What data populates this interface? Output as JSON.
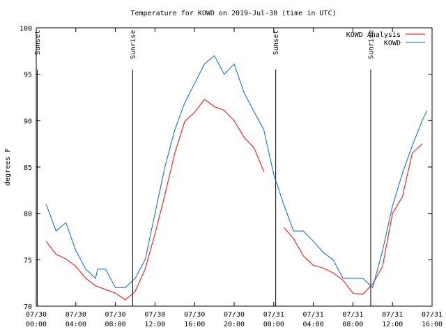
{
  "chart_data": {
    "type": "line",
    "title": "Temperature for KOWD on 2019-Jul-30 (time in UTC)",
    "ylabel": "degrees F",
    "xlabel": "",
    "x_range_hours": [
      0,
      40
    ],
    "ylim": [
      70,
      100
    ],
    "y_ticks": [
      "70",
      "75",
      "80",
      "85",
      "90",
      "95",
      "100"
    ],
    "x_ticks": [
      {
        "hour": 0,
        "line1": "07/30",
        "line2": "00:00"
      },
      {
        "hour": 4,
        "line1": "07/30",
        "line2": "04:00"
      },
      {
        "hour": 8,
        "line1": "07/30",
        "line2": "08:00"
      },
      {
        "hour": 12,
        "line1": "07/30",
        "line2": "12:00"
      },
      {
        "hour": 16,
        "line1": "07/30",
        "line2": "16:00"
      },
      {
        "hour": 20,
        "line1": "07/30",
        "line2": "20:00"
      },
      {
        "hour": 24,
        "line1": "07/31",
        "line2": "00:00"
      },
      {
        "hour": 28,
        "line1": "07/31",
        "line2": "04:00"
      },
      {
        "hour": 32,
        "line1": "07/31",
        "line2": "08:00"
      },
      {
        "hour": 36,
        "line1": "07/31",
        "line2": "12:00"
      },
      {
        "hour": 40,
        "line1": "07/31",
        "line2": "16:00"
      }
    ],
    "events": [
      {
        "hour": 0.1,
        "label": "Sunset"
      },
      {
        "hour": 9.75,
        "label": "Sunrise"
      },
      {
        "hour": 24.2,
        "label": "Sunset"
      },
      {
        "hour": 33.8,
        "label": "Sunrise"
      }
    ],
    "legend_position": "top-right",
    "series": [
      {
        "name": "KOWD Analysis",
        "color": "#ff0000",
        "segments": [
          [
            [
              1,
              77
            ],
            [
              2,
              75.6
            ],
            [
              3,
              75.1
            ],
            [
              4,
              74.3
            ],
            [
              5,
              73
            ],
            [
              6,
              72.2
            ],
            [
              7,
              71.8
            ],
            [
              8,
              71.4
            ],
            [
              9,
              70.7
            ],
            [
              10,
              71.6
            ],
            [
              11,
              74
            ],
            [
              12,
              77.8
            ],
            [
              13,
              82
            ],
            [
              14,
              86.5
            ],
            [
              15,
              89.9
            ],
            [
              16,
              90.9
            ],
            [
              17,
              92.3
            ],
            [
              18,
              91.5
            ],
            [
              19,
              91.1
            ],
            [
              20,
              90
            ],
            [
              21,
              88.2
            ],
            [
              22,
              87.1
            ],
            [
              23,
              84.5
            ]
          ],
          [
            [
              25,
              78.5
            ],
            [
              26,
              77.3
            ],
            [
              27,
              75.4
            ],
            [
              28,
              74.4
            ],
            [
              29,
              74.1
            ],
            [
              30,
              73.6
            ],
            [
              31,
              72.8
            ],
            [
              32,
              71.4
            ],
            [
              33,
              71.3
            ],
            [
              34,
              72.4
            ],
            [
              35,
              74.3
            ],
            [
              36,
              80
            ],
            [
              37,
              81.8
            ],
            [
              38,
              86.5
            ],
            [
              39,
              87.5
            ]
          ]
        ]
      },
      {
        "name": "KOWD",
        "color": "#0066cc",
        "segments": [
          [
            [
              1,
              81
            ],
            [
              2,
              78.1
            ],
            [
              3,
              79
            ],
            [
              4,
              76
            ],
            [
              5,
              74
            ],
            [
              6,
              73
            ],
            [
              6.2,
              74
            ],
            [
              7,
              74
            ],
            [
              8,
              72
            ],
            [
              9,
              72
            ],
            [
              10,
              73
            ],
            [
              11,
              75
            ],
            [
              12,
              80
            ],
            [
              13,
              85
            ],
            [
              14,
              89
            ],
            [
              15,
              91.9
            ],
            [
              16,
              94
            ],
            [
              17,
              96.1
            ],
            [
              18,
              97
            ],
            [
              19,
              95
            ],
            [
              20,
              96.1
            ],
            [
              21,
              93
            ],
            [
              22,
              91
            ],
            [
              23,
              89
            ],
            [
              24,
              84.2
            ],
            [
              25,
              81
            ],
            [
              26,
              78.1
            ],
            [
              27,
              78.1
            ],
            [
              28,
              77
            ],
            [
              29,
              75.8
            ],
            [
              30,
              75
            ],
            [
              31,
              73
            ],
            [
              32,
              73
            ],
            [
              33,
              73
            ],
            [
              34,
              72
            ],
            [
              35,
              76
            ],
            [
              36,
              80.8
            ],
            [
              37,
              84.3
            ],
            [
              38,
              87.3
            ],
            [
              39,
              90
            ],
            [
              39.5,
              91.1
            ]
          ]
        ]
      }
    ]
  }
}
